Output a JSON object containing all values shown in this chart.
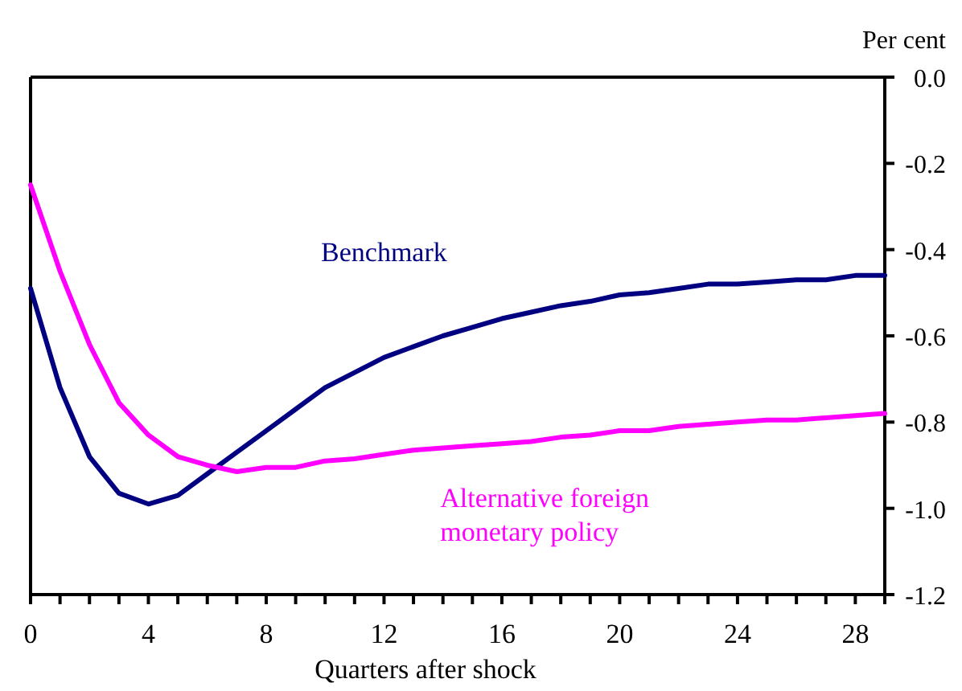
{
  "chart_data": {
    "type": "line",
    "xlabel": "Quarters after shock",
    "ylabel": "Per cent",
    "x": [
      0,
      1,
      2,
      3,
      4,
      5,
      6,
      7,
      8,
      9,
      10,
      11,
      12,
      13,
      14,
      15,
      16,
      17,
      18,
      19,
      20,
      21,
      22,
      23,
      24,
      25,
      26,
      27,
      28,
      29
    ],
    "series": [
      {
        "name": "Benchmark",
        "color": "#000080",
        "values": [
          -0.49,
          -0.72,
          -0.88,
          -0.965,
          -0.99,
          -0.97,
          -0.92,
          -0.87,
          -0.82,
          -0.77,
          -0.72,
          -0.685,
          -0.65,
          -0.625,
          -0.6,
          -0.58,
          -0.56,
          -0.545,
          -0.53,
          -0.52,
          -0.505,
          -0.5,
          -0.49,
          -0.48,
          -0.48,
          -0.475,
          -0.47,
          -0.47,
          -0.46,
          -0.46
        ]
      },
      {
        "name": "Alternative foreign monetary policy",
        "color": "#ff00ff",
        "values": [
          -0.25,
          -0.45,
          -0.62,
          -0.755,
          -0.83,
          -0.88,
          -0.9,
          -0.915,
          -0.905,
          -0.905,
          -0.89,
          -0.885,
          -0.875,
          -0.865,
          -0.86,
          -0.855,
          -0.85,
          -0.845,
          -0.835,
          -0.83,
          -0.82,
          -0.82,
          -0.81,
          -0.805,
          -0.8,
          -0.795,
          -0.795,
          -0.79,
          -0.785,
          -0.78
        ]
      }
    ],
    "xlim": [
      0,
      29
    ],
    "xticks": [
      0,
      {
        "value": 1,
        "label": null
      },
      {
        "value": 2,
        "label": null
      },
      {
        "value": 3,
        "label": null
      },
      4,
      {
        "value": 5,
        "label": null
      },
      {
        "value": 6,
        "label": null
      },
      {
        "value": 7,
        "label": null
      },
      8,
      {
        "value": 9,
        "label": null
      },
      {
        "value": 10,
        "label": null
      },
      {
        "value": 11,
        "label": null
      },
      12,
      {
        "value": 13,
        "label": null
      },
      {
        "value": 14,
        "label": null
      },
      {
        "value": 15,
        "label": null
      },
      16,
      {
        "value": 17,
        "label": null
      },
      {
        "value": 18,
        "label": null
      },
      {
        "value": 19,
        "label": null
      },
      20,
      {
        "value": 21,
        "label": null
      },
      {
        "value": 22,
        "label": null
      },
      {
        "value": 23,
        "label": null
      },
      24,
      {
        "value": 25,
        "label": null
      },
      {
        "value": 26,
        "label": null
      },
      {
        "value": 27,
        "label": null
      },
      28,
      {
        "value": 29,
        "label": null
      }
    ],
    "ylim": [
      -1.2,
      0
    ],
    "yticks": [
      {
        "value": 0,
        "label": "0.0"
      },
      {
        "value": -0.2,
        "label": "-0.2"
      },
      {
        "value": -0.4,
        "label": "-0.4"
      },
      {
        "value": -0.6,
        "label": "-0.6"
      },
      {
        "value": -0.8,
        "label": "-0.8"
      },
      {
        "value": -1.0,
        "label": "-1.0"
      },
      {
        "value": -1.2,
        "label": "-1.2"
      }
    ],
    "grid": false,
    "legend": false,
    "marker": "none",
    "line_style": "solid"
  }
}
